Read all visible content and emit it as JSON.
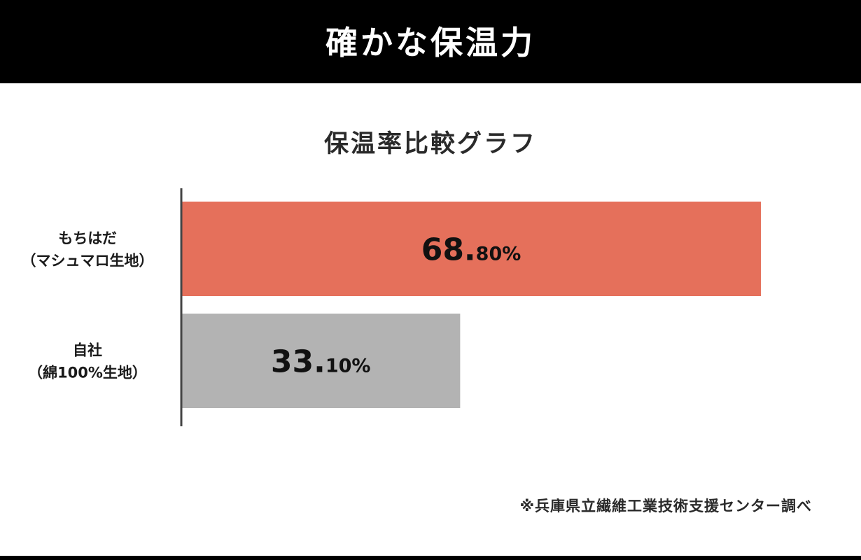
{
  "header": {
    "title": "確かな保温力"
  },
  "footnote": "※兵庫県立繊維工業技術支援センター調べ",
  "colors": {
    "header_bg": "#000000",
    "bar_primary": "#e5705b",
    "bar_secondary": "#b3b3b3",
    "axis": "#444444",
    "text": "#1a1a1a"
  },
  "chart_data": {
    "type": "bar",
    "orientation": "horizontal",
    "title": "保温率比較グラフ",
    "categories": [
      {
        "line1": "もちはだ",
        "line2": "（マシュマロ生地）"
      },
      {
        "line1": "自社",
        "line2": "（綿100%生地）"
      }
    ],
    "values": [
      68.8,
      33.1
    ],
    "value_labels": [
      {
        "int": "68.",
        "dec": "80%"
      },
      {
        "int": "33.",
        "dec": "10%"
      }
    ],
    "bar_colors": [
      "#e5705b",
      "#b3b3b3"
    ],
    "unit": "%",
    "xlim": [
      0,
      100
    ],
    "grid": false,
    "legend": "none"
  }
}
